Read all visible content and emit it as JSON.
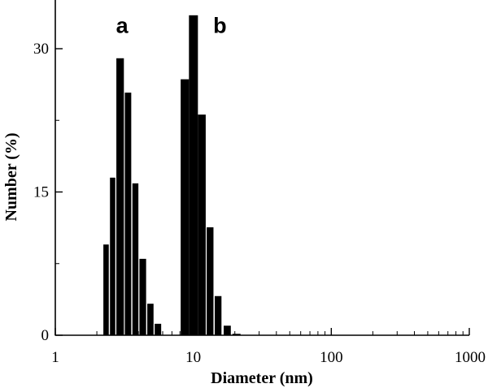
{
  "chart_data": {
    "type": "bar",
    "title": "",
    "xlabel": "Diameter (nm)",
    "ylabel": "Number (%)",
    "x_scale": "log",
    "xlim": [
      1,
      1000
    ],
    "ylim": [
      0,
      35
    ],
    "x_ticks": [
      1,
      10,
      100,
      1000
    ],
    "x_tick_labels": [
      "1",
      "10",
      "100",
      "1000"
    ],
    "y_ticks": [
      0,
      15,
      30
    ],
    "y_tick_labels": [
      "0",
      "15",
      "30"
    ],
    "grid": false,
    "legend": "none",
    "bar_color": "#000000",
    "annotations": [
      {
        "text": "a",
        "x": 3.05,
        "y": 32.5
      },
      {
        "text": "b",
        "x": 15.6,
        "y": 32.5
      }
    ],
    "series": [
      {
        "bins": [
          {
            "from": 2.23,
            "to": 2.44,
            "value": 9.5
          },
          {
            "from": 2.49,
            "to": 2.72,
            "value": 16.5
          },
          {
            "from": 2.77,
            "to": 3.14,
            "value": 29.0
          },
          {
            "from": 3.19,
            "to": 3.55,
            "value": 25.4
          },
          {
            "from": 3.62,
            "to": 4.0,
            "value": 15.9
          },
          {
            "from": 4.07,
            "to": 4.55,
            "value": 8.0
          },
          {
            "from": 4.64,
            "to": 5.15,
            "value": 3.3
          },
          {
            "from": 5.25,
            "to": 5.85,
            "value": 1.2
          }
        ]
      },
      {
        "bins": [
          {
            "from": 8.1,
            "to": 9.3,
            "value": 26.8
          },
          {
            "from": 9.3,
            "to": 10.8,
            "value": 33.5
          },
          {
            "from": 10.8,
            "to": 12.3,
            "value": 23.1
          },
          {
            "from": 12.5,
            "to": 14.0,
            "value": 11.3
          },
          {
            "from": 14.3,
            "to": 16.0,
            "value": 4.1
          },
          {
            "from": 16.6,
            "to": 18.7,
            "value": 1.0
          },
          {
            "from": 19.2,
            "to": 22.0,
            "value": 0.15
          }
        ]
      }
    ]
  }
}
